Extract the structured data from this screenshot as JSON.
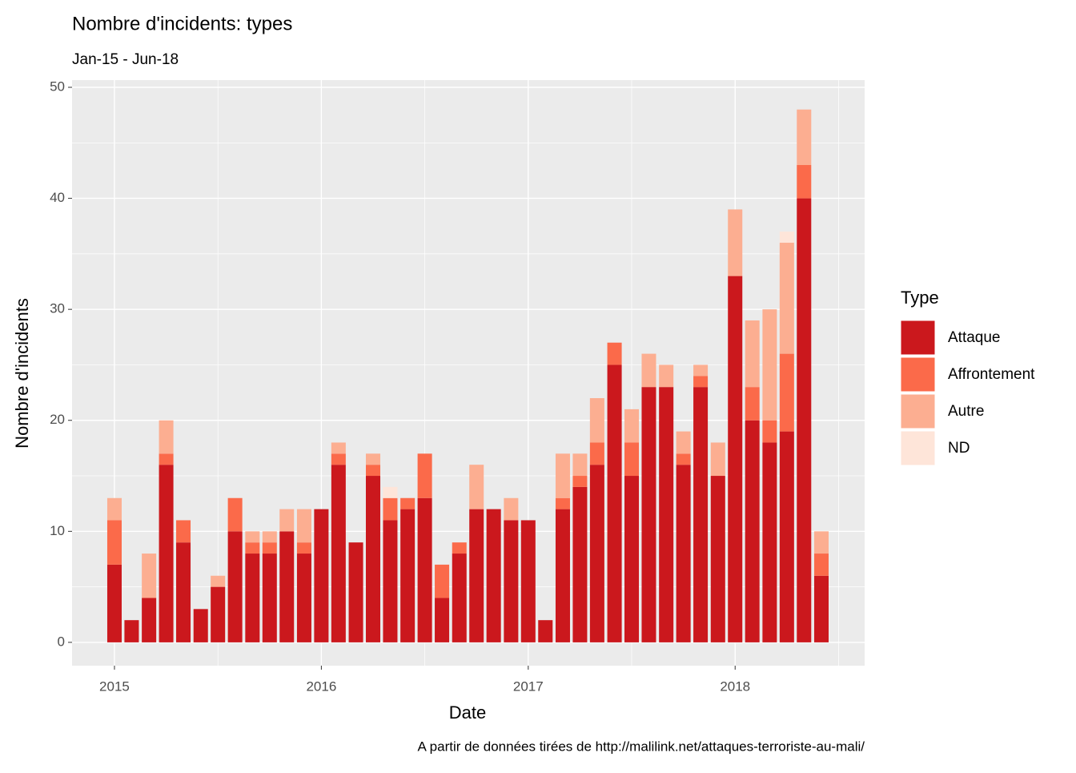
{
  "chart_data": {
    "type": "stacked_bar",
    "title": "Nombre d'incidents: types",
    "subtitle": "Jan-15 - Jun-18",
    "x_label": "Date",
    "y_label": "Nombre d'incidents",
    "caption": "A partir de données tirées de http://malilink.net/attaques-terroriste-au-mali/",
    "legend_title": "Type",
    "x": [
      2015,
      2015.083,
      2015.167,
      2015.25,
      2015.333,
      2015.417,
      2015.5,
      2015.583,
      2015.667,
      2015.75,
      2015.833,
      2015.917,
      2016,
      2016.083,
      2016.167,
      2016.25,
      2016.333,
      2016.417,
      2016.5,
      2016.583,
      2016.667,
      2016.75,
      2016.833,
      2016.917,
      2017,
      2017.083,
      2017.167,
      2017.25,
      2017.333,
      2017.417,
      2017.5,
      2017.583,
      2017.667,
      2017.75,
      2017.833,
      2017.917,
      2018,
      2018.083,
      2018.167,
      2018.25,
      2018.333,
      2018.417
    ],
    "series": [
      {
        "name": "Attaque",
        "color": "#CB181D",
        "values": [
          7,
          2,
          4,
          16,
          9,
          3,
          5,
          10,
          8,
          8,
          10,
          8,
          12,
          16,
          9,
          15,
          11,
          12,
          13,
          4,
          8,
          12,
          12,
          11,
          11,
          2,
          12,
          14,
          16,
          25,
          15,
          23,
          23,
          16,
          23,
          15,
          33,
          20,
          18,
          19,
          40,
          6
        ]
      },
      {
        "name": "Affrontement",
        "color": "#FB6A4A",
        "values": [
          4,
          0,
          0,
          1,
          2,
          0,
          0,
          3,
          1,
          1,
          0,
          1,
          0,
          1,
          0,
          1,
          2,
          1,
          4,
          3,
          1,
          0,
          0,
          0,
          0,
          0,
          1,
          1,
          2,
          2,
          3,
          0,
          0,
          1,
          1,
          0,
          0,
          3,
          2,
          7,
          3,
          2
        ]
      },
      {
        "name": "Autre",
        "color": "#FCAE91",
        "values": [
          2,
          0,
          4,
          3,
          0,
          0,
          1,
          0,
          1,
          1,
          2,
          3,
          0,
          1,
          0,
          1,
          0,
          0,
          0,
          0,
          0,
          4,
          0,
          2,
          0,
          0,
          4,
          2,
          4,
          0,
          3,
          3,
          2,
          2,
          1,
          3,
          6,
          6,
          10,
          10,
          5,
          2
        ]
      },
      {
        "name": "ND",
        "color": "#FEE5D9",
        "values": [
          0,
          0,
          0,
          0,
          0,
          0,
          0,
          0,
          0,
          0,
          0,
          0,
          0,
          0,
          0,
          0,
          1,
          0,
          0,
          0,
          0,
          0,
          0,
          0,
          0,
          0,
          0,
          0,
          0,
          0,
          0,
          0,
          0,
          0,
          0,
          0,
          0,
          0,
          0,
          1,
          0,
          0
        ]
      }
    ],
    "xlim": [
      2014.795,
      2018.626
    ],
    "xticks": [
      2015,
      2016,
      2017,
      2018
    ],
    "ylim": [
      -2.1,
      50.65
    ],
    "yticks": [
      0,
      10,
      20,
      30,
      40,
      50
    ],
    "grid": true
  }
}
